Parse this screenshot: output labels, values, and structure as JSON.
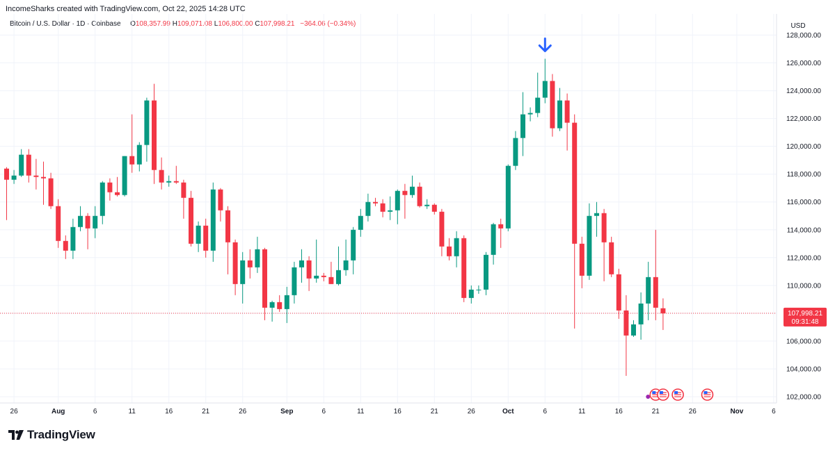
{
  "header": {
    "credit": "IncomeSharks created with TradingView.com, Oct 22, 2025 14:28 UTC",
    "symbol": "Bitcoin / U.S. Dollar · 1D · Coinbase",
    "open_label": "O",
    "open": "108,357.99",
    "high_label": "H",
    "high": "109,071.08",
    "low_label": "L",
    "low": "106,800.00",
    "close_label": "C",
    "close": "107,998.21",
    "change": "−364.06 (−0.34%)"
  },
  "price_axis": {
    "currency": "USD"
  },
  "last_price": {
    "value": "107,998.21",
    "countdown": "09:31:48"
  },
  "branding": {
    "logo_text": "TradingView"
  },
  "colors": {
    "up": "#089981",
    "down": "#F23645",
    "marker": "#2962FF",
    "grid": "#F0F3FA"
  },
  "chart_data": {
    "type": "candlestick",
    "title": "Bitcoin / U.S. Dollar · 1D · Coinbase",
    "ylabel": "USD",
    "ylim": [
      101500,
      128500
    ],
    "y_ticks": [
      102000,
      104000,
      106000,
      108000,
      110000,
      112000,
      114000,
      116000,
      118000,
      120000,
      122000,
      124000,
      126000,
      128000
    ],
    "y_tick_labels": [
      "102,000.00",
      "104,000.00",
      "106,000.00",
      "108,000.00",
      "110,000.00",
      "112,000.00",
      "114,000.00",
      "116,000.00",
      "118,000.00",
      "120,000.00",
      "122,000.00",
      "124,000.00",
      "126,000.00",
      "128,000.00"
    ],
    "x_start": "2025-07-25",
    "x_end": "2025-11-06",
    "x_ticks": [
      {
        "date": "2025-07-26",
        "label": "26"
      },
      {
        "date": "2025-08-01",
        "label": "Aug"
      },
      {
        "date": "2025-08-06",
        "label": "6"
      },
      {
        "date": "2025-08-11",
        "label": "11"
      },
      {
        "date": "2025-08-16",
        "label": "16"
      },
      {
        "date": "2025-08-21",
        "label": "21"
      },
      {
        "date": "2025-08-26",
        "label": "26"
      },
      {
        "date": "2025-09-01",
        "label": "Sep"
      },
      {
        "date": "2025-09-06",
        "label": "6"
      },
      {
        "date": "2025-09-11",
        "label": "11"
      },
      {
        "date": "2025-09-16",
        "label": "16"
      },
      {
        "date": "2025-09-21",
        "label": "21"
      },
      {
        "date": "2025-09-26",
        "label": "26"
      },
      {
        "date": "2025-10-01",
        "label": "Oct"
      },
      {
        "date": "2025-10-06",
        "label": "6"
      },
      {
        "date": "2025-10-11",
        "label": "11"
      },
      {
        "date": "2025-10-16",
        "label": "16"
      },
      {
        "date": "2025-10-21",
        "label": "21"
      },
      {
        "date": "2025-10-26",
        "label": "26"
      },
      {
        "date": "2025-11-01",
        "label": "Nov"
      },
      {
        "date": "2025-11-06",
        "label": "6"
      }
    ],
    "last_price": 107998.21,
    "annotation": {
      "type": "arrow-down",
      "date": "2025-10-06",
      "price": 127300
    },
    "event_markers": [
      {
        "date": "2025-10-21",
        "kind": "us-flag"
      },
      {
        "date": "2025-10-22",
        "kind": "us-flag"
      },
      {
        "date": "2025-10-24",
        "kind": "us-flag"
      },
      {
        "date": "2025-10-28",
        "kind": "us-flag"
      }
    ],
    "candles": [
      {
        "date": "2025-07-25",
        "o": 118400,
        "h": 118500,
        "l": 114700,
        "c": 117600
      },
      {
        "date": "2025-07-26",
        "o": 117600,
        "h": 118300,
        "l": 117300,
        "c": 117900
      },
      {
        "date": "2025-07-27",
        "o": 117900,
        "h": 119800,
        "l": 117800,
        "c": 119400
      },
      {
        "date": "2025-07-28",
        "o": 119400,
        "h": 119800,
        "l": 117400,
        "c": 117900
      },
      {
        "date": "2025-07-29",
        "o": 117900,
        "h": 119100,
        "l": 116900,
        "c": 117800
      },
      {
        "date": "2025-07-30",
        "o": 117800,
        "h": 118900,
        "l": 115800,
        "c": 117700
      },
      {
        "date": "2025-07-31",
        "o": 117700,
        "h": 118100,
        "l": 115500,
        "c": 115700
      },
      {
        "date": "2025-08-01",
        "o": 115700,
        "h": 116200,
        "l": 112700,
        "c": 113200
      },
      {
        "date": "2025-08-02",
        "o": 113200,
        "h": 113600,
        "l": 111900,
        "c": 112500
      },
      {
        "date": "2025-08-03",
        "o": 112500,
        "h": 114800,
        "l": 111900,
        "c": 114200
      },
      {
        "date": "2025-08-04",
        "o": 114200,
        "h": 115700,
        "l": 113900,
        "c": 115000
      },
      {
        "date": "2025-08-05",
        "o": 115000,
        "h": 115200,
        "l": 112600,
        "c": 114100
      },
      {
        "date": "2025-08-06",
        "o": 114100,
        "h": 115700,
        "l": 113400,
        "c": 115000
      },
      {
        "date": "2025-08-07",
        "o": 115000,
        "h": 117500,
        "l": 114400,
        "c": 117400
      },
      {
        "date": "2025-08-08",
        "o": 117400,
        "h": 117700,
        "l": 116100,
        "c": 116700
      },
      {
        "date": "2025-08-09",
        "o": 116700,
        "h": 117800,
        "l": 116400,
        "c": 116500
      },
      {
        "date": "2025-08-10",
        "o": 116500,
        "h": 119300,
        "l": 116400,
        "c": 119300
      },
      {
        "date": "2025-08-11",
        "o": 119300,
        "h": 122300,
        "l": 118100,
        "c": 118700
      },
      {
        "date": "2025-08-12",
        "o": 118700,
        "h": 120300,
        "l": 118200,
        "c": 120100
      },
      {
        "date": "2025-08-13",
        "o": 120100,
        "h": 123500,
        "l": 118900,
        "c": 123300
      },
      {
        "date": "2025-08-14",
        "o": 123300,
        "h": 124500,
        "l": 117300,
        "c": 118300
      },
      {
        "date": "2025-08-15",
        "o": 118300,
        "h": 119200,
        "l": 116900,
        "c": 117400
      },
      {
        "date": "2025-08-16",
        "o": 117400,
        "h": 117900,
        "l": 117100,
        "c": 117500
      },
      {
        "date": "2025-08-17",
        "o": 117500,
        "h": 118600,
        "l": 117300,
        "c": 117400
      },
      {
        "date": "2025-08-18",
        "o": 117400,
        "h": 117600,
        "l": 114800,
        "c": 116300
      },
      {
        "date": "2025-08-19",
        "o": 116300,
        "h": 116800,
        "l": 112800,
        "c": 113000
      },
      {
        "date": "2025-08-20",
        "o": 113000,
        "h": 114600,
        "l": 112400,
        "c": 114300
      },
      {
        "date": "2025-08-21",
        "o": 114300,
        "h": 114800,
        "l": 112000,
        "c": 112500
      },
      {
        "date": "2025-08-22",
        "o": 112500,
        "h": 117400,
        "l": 111700,
        "c": 116900
      },
      {
        "date": "2025-08-23",
        "o": 116900,
        "h": 117000,
        "l": 114600,
        "c": 115400
      },
      {
        "date": "2025-08-24",
        "o": 115400,
        "h": 115700,
        "l": 110800,
        "c": 113100
      },
      {
        "date": "2025-08-25",
        "o": 113100,
        "h": 113300,
        "l": 109300,
        "c": 110100
      },
      {
        "date": "2025-08-26",
        "o": 110100,
        "h": 112400,
        "l": 108700,
        "c": 111800
      },
      {
        "date": "2025-08-27",
        "o": 111800,
        "h": 112600,
        "l": 110500,
        "c": 111300
      },
      {
        "date": "2025-08-28",
        "o": 111300,
        "h": 113500,
        "l": 110900,
        "c": 112600
      },
      {
        "date": "2025-08-29",
        "o": 112600,
        "h": 112700,
        "l": 107500,
        "c": 108400
      },
      {
        "date": "2025-08-30",
        "o": 108400,
        "h": 108900,
        "l": 107400,
        "c": 108800
      },
      {
        "date": "2025-08-31",
        "o": 108800,
        "h": 109300,
        "l": 108100,
        "c": 108300
      },
      {
        "date": "2025-09-01",
        "o": 108300,
        "h": 109900,
        "l": 107300,
        "c": 109300
      },
      {
        "date": "2025-09-02",
        "o": 109300,
        "h": 111700,
        "l": 108700,
        "c": 111300
      },
      {
        "date": "2025-09-03",
        "o": 111300,
        "h": 112600,
        "l": 110200,
        "c": 111800
      },
      {
        "date": "2025-09-04",
        "o": 111800,
        "h": 112100,
        "l": 109600,
        "c": 110500
      },
      {
        "date": "2025-09-05",
        "o": 110500,
        "h": 113300,
        "l": 110200,
        "c": 110700
      },
      {
        "date": "2025-09-06",
        "o": 110700,
        "h": 110900,
        "l": 110300,
        "c": 110600
      },
      {
        "date": "2025-09-07",
        "o": 110600,
        "h": 111700,
        "l": 110100,
        "c": 110100
      },
      {
        "date": "2025-09-08",
        "o": 110100,
        "h": 112800,
        "l": 110000,
        "c": 111100
      },
      {
        "date": "2025-09-09",
        "o": 111100,
        "h": 113300,
        "l": 110700,
        "c": 111800
      },
      {
        "date": "2025-09-10",
        "o": 111800,
        "h": 114200,
        "l": 110800,
        "c": 114000
      },
      {
        "date": "2025-09-11",
        "o": 114000,
        "h": 115500,
        "l": 113500,
        "c": 115000
      },
      {
        "date": "2025-09-12",
        "o": 115000,
        "h": 116600,
        "l": 114600,
        "c": 116000
      },
      {
        "date": "2025-09-13",
        "o": 116000,
        "h": 116300,
        "l": 115700,
        "c": 115900
      },
      {
        "date": "2025-09-14",
        "o": 115900,
        "h": 116200,
        "l": 114900,
        "c": 115300
      },
      {
        "date": "2025-09-15",
        "o": 115300,
        "h": 116400,
        "l": 114700,
        "c": 115400
      },
      {
        "date": "2025-09-16",
        "o": 115400,
        "h": 116900,
        "l": 114400,
        "c": 116800
      },
      {
        "date": "2025-09-17",
        "o": 116800,
        "h": 117300,
        "l": 114800,
        "c": 116500
      },
      {
        "date": "2025-09-18",
        "o": 116500,
        "h": 117900,
        "l": 116300,
        "c": 117100
      },
      {
        "date": "2025-09-19",
        "o": 117100,
        "h": 117400,
        "l": 115600,
        "c": 115700
      },
      {
        "date": "2025-09-20",
        "o": 115700,
        "h": 116200,
        "l": 115500,
        "c": 115800
      },
      {
        "date": "2025-09-21",
        "o": 115800,
        "h": 115900,
        "l": 115100,
        "c": 115300
      },
      {
        "date": "2025-09-22",
        "o": 115300,
        "h": 115500,
        "l": 112100,
        "c": 112800
      },
      {
        "date": "2025-09-23",
        "o": 112800,
        "h": 113400,
        "l": 111800,
        "c": 112100
      },
      {
        "date": "2025-09-24",
        "o": 112100,
        "h": 113900,
        "l": 111300,
        "c": 113400
      },
      {
        "date": "2025-09-25",
        "o": 113400,
        "h": 113600,
        "l": 108800,
        "c": 109100
      },
      {
        "date": "2025-09-26",
        "o": 109100,
        "h": 110000,
        "l": 108700,
        "c": 109700
      },
      {
        "date": "2025-09-27",
        "o": 109700,
        "h": 110000,
        "l": 109400,
        "c": 109700
      },
      {
        "date": "2025-09-28",
        "o": 109700,
        "h": 112400,
        "l": 109300,
        "c": 112200
      },
      {
        "date": "2025-09-29",
        "o": 112200,
        "h": 114500,
        "l": 111500,
        "c": 114400
      },
      {
        "date": "2025-09-30",
        "o": 114400,
        "h": 114800,
        "l": 112700,
        "c": 114100
      },
      {
        "date": "2025-10-01",
        "o": 114100,
        "h": 118700,
        "l": 113900,
        "c": 118600
      },
      {
        "date": "2025-10-02",
        "o": 118600,
        "h": 121100,
        "l": 118300,
        "c": 120600
      },
      {
        "date": "2025-10-03",
        "o": 120600,
        "h": 123900,
        "l": 119300,
        "c": 122300
      },
      {
        "date": "2025-10-04",
        "o": 122300,
        "h": 122800,
        "l": 121800,
        "c": 122400
      },
      {
        "date": "2025-10-05",
        "o": 122400,
        "h": 125300,
        "l": 122100,
        "c": 123500
      },
      {
        "date": "2025-10-06",
        "o": 123500,
        "h": 126300,
        "l": 123100,
        "c": 124700
      },
      {
        "date": "2025-10-07",
        "o": 124700,
        "h": 125200,
        "l": 120700,
        "c": 121300
      },
      {
        "date": "2025-10-08",
        "o": 121300,
        "h": 124200,
        "l": 121100,
        "c": 123300
      },
      {
        "date": "2025-10-09",
        "o": 123300,
        "h": 123800,
        "l": 119700,
        "c": 121700
      },
      {
        "date": "2025-10-10",
        "o": 121700,
        "h": 122300,
        "l": 106900,
        "c": 113000
      },
      {
        "date": "2025-10-11",
        "o": 113000,
        "h": 113500,
        "l": 109800,
        "c": 110700
      },
      {
        "date": "2025-10-12",
        "o": 110700,
        "h": 115900,
        "l": 110400,
        "c": 115000
      },
      {
        "date": "2025-10-13",
        "o": 115000,
        "h": 116000,
        "l": 113500,
        "c": 115200
      },
      {
        "date": "2025-10-14",
        "o": 115200,
        "h": 115500,
        "l": 110300,
        "c": 113100
      },
      {
        "date": "2025-10-15",
        "o": 113100,
        "h": 113500,
        "l": 110600,
        "c": 110800
      },
      {
        "date": "2025-10-16",
        "o": 110800,
        "h": 111200,
        "l": 107600,
        "c": 108200
      },
      {
        "date": "2025-10-17",
        "o": 108200,
        "h": 109300,
        "l": 103500,
        "c": 106400
      },
      {
        "date": "2025-10-18",
        "o": 106400,
        "h": 107500,
        "l": 106300,
        "c": 107200
      },
      {
        "date": "2025-10-19",
        "o": 107200,
        "h": 109500,
        "l": 106100,
        "c": 108700
      },
      {
        "date": "2025-10-20",
        "o": 108700,
        "h": 111700,
        "l": 107500,
        "c": 110600
      },
      {
        "date": "2025-10-21",
        "o": 110600,
        "h": 114000,
        "l": 107500,
        "c": 108400
      },
      {
        "date": "2025-10-22",
        "o": 108358,
        "h": 109071,
        "l": 106800,
        "c": 107998
      }
    ]
  }
}
